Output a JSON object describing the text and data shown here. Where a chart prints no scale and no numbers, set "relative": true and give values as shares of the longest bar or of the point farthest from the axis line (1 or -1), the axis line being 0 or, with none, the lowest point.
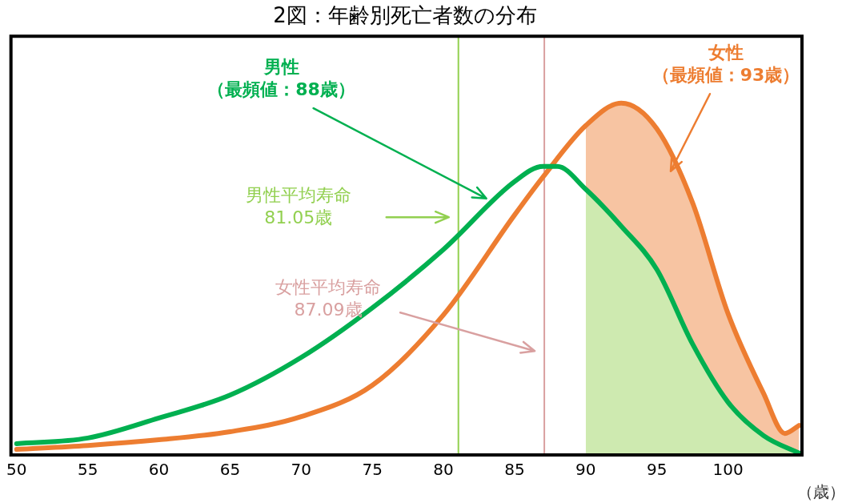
{
  "chart_data": {
    "type": "line",
    "title": "2図：年齢別死亡者数の分布",
    "xlabel": "（歳）",
    "relative": true,
    "xlim": [
      49.6,
      105.2
    ],
    "xticks": [
      50,
      55,
      60,
      65,
      70,
      75,
      80,
      85,
      90,
      95,
      100
    ],
    "grid": false,
    "legend": false,
    "marker": "none",
    "line_style": "solid",
    "series": [
      {
        "color": "#00b050",
        "x": [
          50,
          55,
          60,
          65,
          70,
          75,
          80,
          85,
          87,
          88,
          90,
          92.5,
          95,
          97.5,
          100,
          102.5,
          105
        ],
        "values": [
          0.032,
          0.048,
          0.105,
          0.17,
          0.277,
          0.418,
          0.584,
          0.777,
          0.82,
          0.82,
          0.755,
          0.65,
          0.527,
          0.316,
          0.15,
          0.055,
          0.005
        ]
      },
      {
        "color": "#ed7d31",
        "x": [
          50,
          55,
          60,
          65,
          70,
          75,
          80,
          85,
          87,
          90,
          92.5,
          95,
          97.5,
          100,
          102.5,
          104,
          105
        ],
        "values": [
          0.016,
          0.027,
          0.043,
          0.066,
          0.109,
          0.198,
          0.398,
          0.682,
          0.79,
          0.936,
          1,
          0.927,
          0.718,
          0.402,
          0.175,
          0.061,
          0.084
        ]
      },
      {
        "type": "area",
        "color": "#92d050",
        "x": [
          90,
          92.5,
          95,
          97.5,
          100,
          102.5,
          105
        ],
        "values": [
          0.755,
          0.65,
          0.527,
          0.316,
          0.15,
          0.055,
          0.005
        ]
      },
      {
        "type": "area",
        "color": "#ed7d31",
        "x": [
          90,
          92.5,
          95,
          97.5,
          100,
          102.5,
          104,
          105
        ],
        "values": [
          0.936,
          1,
          0.927,
          0.718,
          0.402,
          0.175,
          0.061,
          0.084
        ]
      }
    ],
    "ref_lines": [
      {
        "axis": "x",
        "value": 81.05,
        "label": "男性平均寿命\n81.05歳",
        "color": "#92d050"
      },
      {
        "axis": "x",
        "value": 87.09,
        "label": "女性平均寿命\n87.09歳",
        "color": "#d9a0a0"
      }
    ],
    "annotations": [
      "男性（最頻値：88歳）",
      "女性（最頻値：93歳）"
    ]
  }
}
